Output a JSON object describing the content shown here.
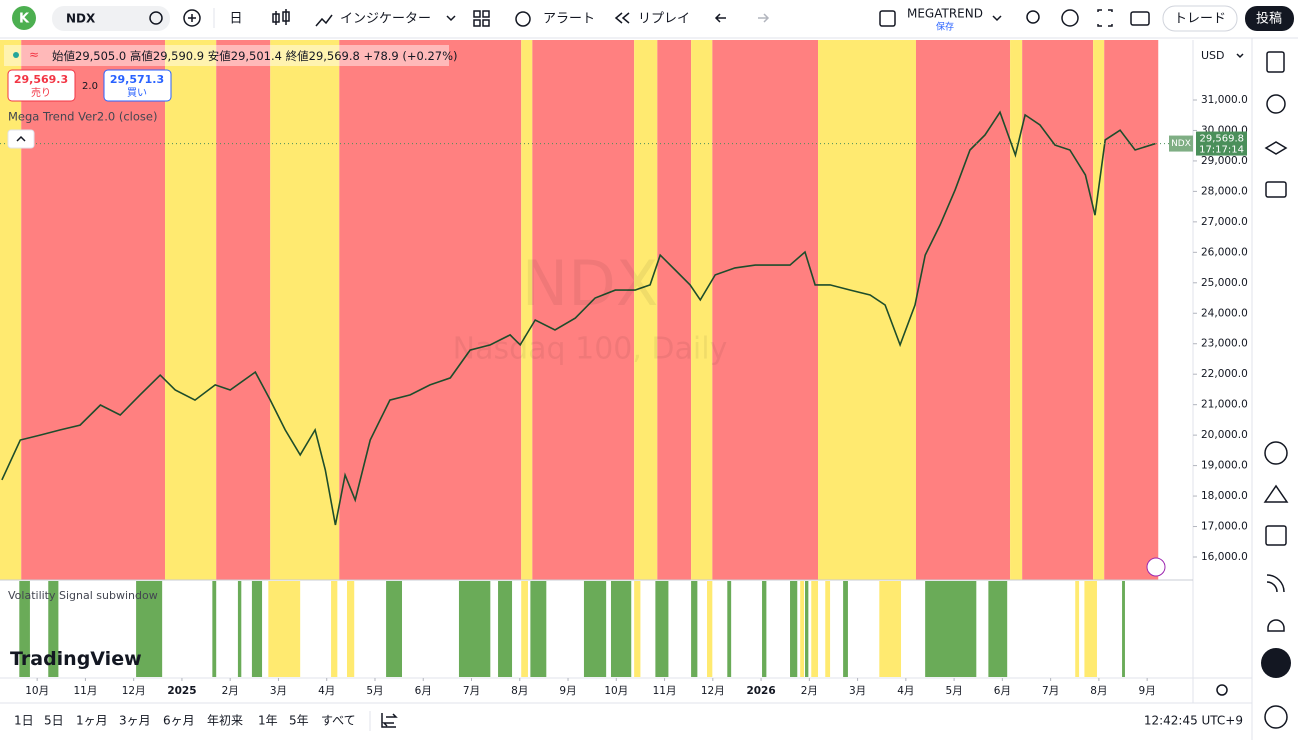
{
  "toolbar": {
    "avatar": "K",
    "symbol": "NDX",
    "interval": "日",
    "indicators": "インジケーター",
    "alert": "アラート",
    "replay": "リプレイ",
    "layout_name": "MEGATREND",
    "layout_status": "保存",
    "trade": "トレード",
    "publish": "投稿"
  },
  "legend": {
    "open": "始値29,505.0",
    "high": "高値29,590.9",
    "low": "安値29,501.4",
    "close": "終値29,569.8",
    "change": "+78.9 (+0.27%)",
    "sell_price": "29,569.3",
    "sell_label": "売り",
    "spread": "2.0",
    "buy_price": "29,571.3",
    "buy_label": "買い",
    "indicator_name": "Mega Trend Ver2.0 (close)"
  },
  "watermark": {
    "symbol": "NDX",
    "description": "Nasdaq 100, Daily"
  },
  "subwindow_name": "Volatility Signal subwindow",
  "logo": "TradingView",
  "currency": "USD",
  "chart_data": {
    "type": "line",
    "color": "#1e4d2b",
    "x": [
      -0.73,
      -0.35,
      0.06,
      0.48,
      0.89,
      1.31,
      1.72,
      2.13,
      2.55,
      2.86,
      3.27,
      3.69,
      4.0,
      4.52,
      4.83,
      5.14,
      5.45,
      5.76,
      5.97,
      6.18,
      6.38,
      6.59,
      6.9,
      7.31,
      7.73,
      8.14,
      8.56,
      8.97,
      9.39,
      9.8,
      10.01,
      10.32,
      10.73,
      11.15,
      11.56,
      11.98,
      12.39,
      12.7,
      12.91,
      13.22,
      13.53,
      13.74,
      14.05,
      14.46,
      14.88,
      15.29,
      15.6,
      15.91,
      16.12,
      16.43,
      16.85,
      17.26,
      17.57,
      17.88,
      18.19,
      18.4,
      18.71,
      19.02,
      19.33,
      19.64,
      19.95,
      20.27,
      20.47,
      20.78,
      21.09,
      21.4,
      21.72,
      21.92,
      22.13,
      22.44,
      22.75,
      23.17
    ],
    "values": [
      18530,
      19840,
      20000,
      20170,
      20330,
      20990,
      20660,
      21320,
      21970,
      21480,
      21150,
      21650,
      21480,
      22070,
      21150,
      20170,
      19350,
      20170,
      18860,
      17050,
      18690,
      17870,
      19840,
      21150,
      21320,
      21650,
      21880,
      22790,
      22960,
      23290,
      22960,
      23780,
      23450,
      23840,
      24500,
      24760,
      24760,
      24930,
      25910,
      25420,
      24930,
      24440,
      25260,
      25490,
      25580,
      25580,
      25580,
      26010,
      24930,
      24930,
      24760,
      24600,
      24270,
      22960,
      24270,
      25910,
      26900,
      28050,
      29360,
      29850,
      30600,
      29190,
      30510,
      30180,
      29520,
      29360,
      28540,
      27220,
      29690,
      30010,
      29360,
      29569.8
    ],
    "last_value": 29569.8,
    "last_value_label": "29,569.8",
    "last_symbol": "NDX",
    "countdown": "17:17:14",
    "xlim": [
      -0.77,
      23.95
    ],
    "xticks": [
      {
        "value": 0,
        "label": "10月"
      },
      {
        "value": 1,
        "label": "11月"
      },
      {
        "value": 2,
        "label": "12月"
      },
      {
        "value": 3,
        "label": "2025"
      },
      {
        "value": 4,
        "label": "2月"
      },
      {
        "value": 5,
        "label": "3月"
      },
      {
        "value": 6,
        "label": "4月"
      },
      {
        "value": 7,
        "label": "5月"
      },
      {
        "value": 8,
        "label": "6月"
      },
      {
        "value": 9,
        "label": "7月"
      },
      {
        "value": 10,
        "label": "8月"
      },
      {
        "value": 11,
        "label": "9月"
      },
      {
        "value": 12,
        "label": "10月"
      },
      {
        "value": 13,
        "label": "11月"
      },
      {
        "value": 14,
        "label": "12月"
      },
      {
        "value": 15,
        "label": "2026"
      },
      {
        "value": 16,
        "label": "2月"
      },
      {
        "value": 17,
        "label": "3月"
      },
      {
        "value": 18,
        "label": "4月"
      },
      {
        "value": 19,
        "label": "5月"
      },
      {
        "value": 20,
        "label": "6月"
      },
      {
        "value": 21,
        "label": "7月"
      },
      {
        "value": 22,
        "label": "8月"
      },
      {
        "value": 23,
        "label": "9月"
      }
    ],
    "ylim": [
      15245,
      32969
    ],
    "yticks": [
      {
        "value": 16000,
        "label": "16,000.0"
      },
      {
        "value": 17000,
        "label": "17,000.0"
      },
      {
        "value": 18000,
        "label": "18,000.0"
      },
      {
        "value": 19000,
        "label": "19,000.0"
      },
      {
        "value": 20000,
        "label": "20,000.0"
      },
      {
        "value": 21000,
        "label": "21,000.0"
      },
      {
        "value": 22000,
        "label": "22,000.0"
      },
      {
        "value": 23000,
        "label": "23,000.0"
      },
      {
        "value": 24000,
        "label": "24,000.0"
      },
      {
        "value": 25000,
        "label": "25,000.0"
      },
      {
        "value": 26000,
        "label": "26,000.0"
      },
      {
        "value": 27000,
        "label": "27,000.0"
      },
      {
        "value": 28000,
        "label": "28,000.0"
      },
      {
        "value": 29000,
        "label": "29,000.0"
      },
      {
        "value": 30000,
        "label": "30,000.0"
      },
      {
        "value": 31000,
        "label": "31,000.0"
      }
    ],
    "bands": [
      {
        "start": -0.77,
        "end": -0.33,
        "color": "#ffea70"
      },
      {
        "start": -0.33,
        "end": 2.65,
        "color": "#ff8080"
      },
      {
        "start": 2.65,
        "end": 3.71,
        "color": "#ffea70"
      },
      {
        "start": 3.71,
        "end": 4.83,
        "color": "#ff8080"
      },
      {
        "start": 4.83,
        "end": 6.26,
        "color": "#ffea70"
      },
      {
        "start": 6.26,
        "end": 10.03,
        "color": "#ff8080"
      },
      {
        "start": 10.03,
        "end": 10.26,
        "color": "#ffea70"
      },
      {
        "start": 10.26,
        "end": 12.37,
        "color": "#ff8080"
      },
      {
        "start": 12.37,
        "end": 12.85,
        "color": "#ffea70"
      },
      {
        "start": 12.85,
        "end": 13.55,
        "color": "#ff8080"
      },
      {
        "start": 13.55,
        "end": 13.99,
        "color": "#ffea70"
      },
      {
        "start": 13.99,
        "end": 16.18,
        "color": "#ff8080"
      },
      {
        "start": 16.18,
        "end": 18.21,
        "color": "#ffea70"
      },
      {
        "start": 18.21,
        "end": 20.16,
        "color": "#ff8080"
      },
      {
        "start": 20.16,
        "end": 20.41,
        "color": "#ffea70"
      },
      {
        "start": 20.41,
        "end": 21.88,
        "color": "#ff8080"
      },
      {
        "start": 21.88,
        "end": 22.11,
        "color": "#ffea70"
      },
      {
        "start": 22.11,
        "end": 23.23,
        "color": "#ff8080"
      }
    ],
    "subwindow_bands": [
      {
        "start": -0.37,
        "end": -0.15,
        "color": "#6aab58"
      },
      {
        "start": 0.23,
        "end": 0.44,
        "color": "#6aab58"
      },
      {
        "start": 2.05,
        "end": 2.59,
        "color": "#6aab58"
      },
      {
        "start": 3.63,
        "end": 3.71,
        "color": "#6aab58"
      },
      {
        "start": 4.16,
        "end": 4.23,
        "color": "#6aab58"
      },
      {
        "start": 4.45,
        "end": 4.66,
        "color": "#6aab58"
      },
      {
        "start": 4.79,
        "end": 5.45,
        "color": "#ffea70"
      },
      {
        "start": 6.09,
        "end": 6.22,
        "color": "#ffea70"
      },
      {
        "start": 6.42,
        "end": 6.57,
        "color": "#ffea70"
      },
      {
        "start": 7.23,
        "end": 7.56,
        "color": "#6aab58"
      },
      {
        "start": 8.74,
        "end": 9.39,
        "color": "#6aab58"
      },
      {
        "start": 9.55,
        "end": 9.84,
        "color": "#6aab58"
      },
      {
        "start": 10.03,
        "end": 10.17,
        "color": "#ffea70"
      },
      {
        "start": 10.22,
        "end": 10.55,
        "color": "#6aab58"
      },
      {
        "start": 11.33,
        "end": 11.79,
        "color": "#6aab58"
      },
      {
        "start": 11.89,
        "end": 12.31,
        "color": "#6aab58"
      },
      {
        "start": 12.37,
        "end": 12.5,
        "color": "#ffea70"
      },
      {
        "start": 12.81,
        "end": 13.08,
        "color": "#6aab58"
      },
      {
        "start": 13.55,
        "end": 13.68,
        "color": "#6aab58"
      },
      {
        "start": 13.88,
        "end": 13.99,
        "color": "#ffea70"
      },
      {
        "start": 14.3,
        "end": 14.38,
        "color": "#6aab58"
      },
      {
        "start": 15.02,
        "end": 15.11,
        "color": "#6aab58"
      },
      {
        "start": 15.6,
        "end": 15.75,
        "color": "#6aab58"
      },
      {
        "start": 15.81,
        "end": 15.89,
        "color": "#ffea70"
      },
      {
        "start": 15.91,
        "end": 15.98,
        "color": "#6aab58"
      },
      {
        "start": 16.04,
        "end": 16.18,
        "color": "#ffea70"
      },
      {
        "start": 16.33,
        "end": 16.43,
        "color": "#ffea70"
      },
      {
        "start": 16.7,
        "end": 16.8,
        "color": "#6aab58"
      },
      {
        "start": 17.45,
        "end": 17.9,
        "color": "#ffea70"
      },
      {
        "start": 18.4,
        "end": 19.46,
        "color": "#6aab58"
      },
      {
        "start": 19.71,
        "end": 20.1,
        "color": "#6aab58"
      },
      {
        "start": 21.51,
        "end": 21.59,
        "color": "#ffea70"
      },
      {
        "start": 21.7,
        "end": 21.96,
        "color": "#ffea70"
      },
      {
        "start": 22.48,
        "end": 22.54,
        "color": "#6aab58"
      }
    ]
  },
  "bottom_bar": {
    "ranges": [
      "1日",
      "5日",
      "1ヶ月",
      "3ヶ月",
      "6ヶ月",
      "年初来",
      "1年",
      "5年",
      "すべて"
    ],
    "clock": "12:42:45 UTC+9"
  }
}
